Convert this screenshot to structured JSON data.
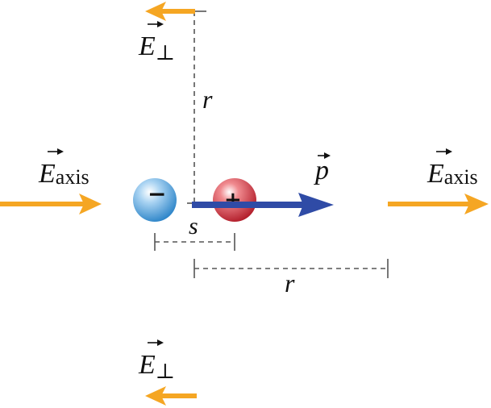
{
  "colors": {
    "field_arrow": "#F5A623",
    "dipole_arrow": "#2F4BA6",
    "dashed_line": "#555555",
    "negative_charge": "#4A9BD8",
    "positive_charge": "#C8343E"
  },
  "labels": {
    "field_symbol": "E",
    "perp_subscript": "⊥",
    "axis_subscript": "axis",
    "dipole_symbol": "p",
    "separation": "s",
    "distance_vertical": "r",
    "distance_horizontal": "r",
    "negative_sign": "−",
    "positive_sign": "+"
  },
  "icons": {
    "negative_charge": "negative-charge-icon",
    "positive_charge": "positive-charge-icon"
  }
}
